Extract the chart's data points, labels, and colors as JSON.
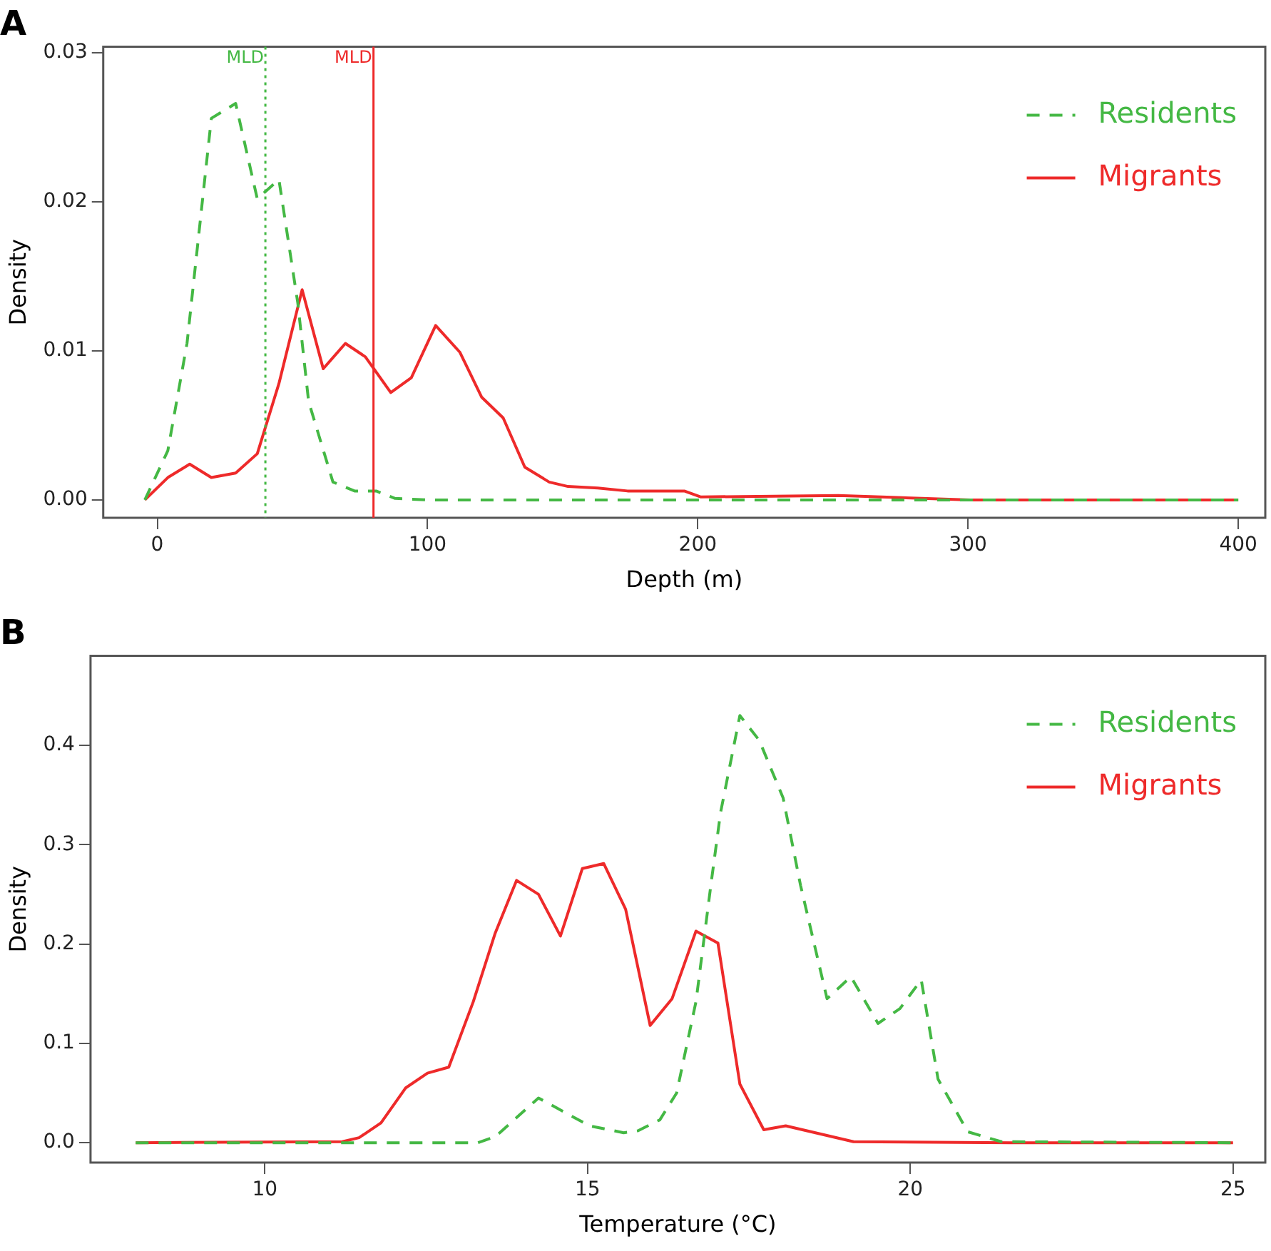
{
  "chart_data": [
    {
      "type": "line",
      "title": "A",
      "xlabel": "Depth (m)",
      "ylabel": "Density",
      "xlim": [
        -20,
        410
      ],
      "ylim": [
        -0.0012,
        0.0304
      ],
      "xticks": [
        0,
        100,
        200,
        300,
        400
      ],
      "yticks": [
        {
          "value": 0,
          "label": "0.00"
        },
        0.01,
        0.02,
        0.03
      ],
      "grid": false,
      "legend": "top right",
      "marker": "none",
      "series": [
        {
          "name": "Residents",
          "color": "#44b844",
          "line_style": "dashed",
          "x": [
            -4.6,
            3.9,
            11,
            20,
            29,
            37,
            45,
            52,
            56,
            65,
            73,
            81,
            88,
            100,
            200,
            300,
            400
          ],
          "values": [
            0,
            0.0033,
            0.0105,
            0.0256,
            0.0266,
            0.0202,
            0.0215,
            0.0132,
            0.0066,
            0.0012,
            0.0006,
            0.0006,
            0.0001,
            0,
            0,
            0,
            0
          ]
        },
        {
          "name": "Migrants",
          "color": "#ee2a2a",
          "line_style": "solid",
          "x": [
            -4.6,
            3.9,
            12,
            20,
            29,
            37,
            45,
            53.6,
            61.4,
            69.6,
            77,
            86.4,
            94,
            103,
            112,
            120,
            128,
            136,
            145,
            152,
            163,
            174,
            195,
            201,
            252,
            268,
            301,
            400
          ],
          "values": [
            0,
            0.0015,
            0.0024,
            0.0015,
            0.0018,
            0.0031,
            0.0078,
            0.0141,
            0.0088,
            0.0105,
            0.0096,
            0.0072,
            0.0082,
            0.0117,
            0.0099,
            0.0069,
            0.0055,
            0.0022,
            0.0012,
            0.0009,
            0.0008,
            0.0006,
            0.0006,
            0.0002,
            0.0003,
            0.0002,
            0,
            0
          ]
        }
      ],
      "ref_lines": [
        {
          "axis": "x",
          "value": 40,
          "label": "MLD",
          "color": "#44b844",
          "line_style": "dotted"
        },
        {
          "axis": "x",
          "value": 80,
          "label": "MLD",
          "color": "#ee2a2a",
          "line_style": "solid"
        }
      ]
    },
    {
      "type": "line",
      "title": "B",
      "xlabel": "Temperature (°C)",
      "ylabel": "Density",
      "xlim": [
        7.3,
        25.5
      ],
      "ylim": [
        -0.02,
        0.49
      ],
      "xticks": [
        10,
        15,
        20,
        25
      ],
      "yticks": [
        {
          "value": 0,
          "label": "0.0"
        },
        0.1,
        0.2,
        0.3,
        0.4
      ],
      "grid": false,
      "legend": "top right",
      "marker": "none",
      "series": [
        {
          "name": "Residents",
          "color": "#44b844",
          "line_style": "dashed",
          "x": [
            8,
            13.3,
            13.57,
            14.24,
            15.03,
            15.56,
            15.78,
            16.12,
            16.38,
            16.68,
            16.91,
            17.06,
            17.36,
            17.66,
            18.03,
            18.3,
            18.71,
            19.08,
            19.5,
            19.84,
            20.17,
            20.43,
            20.89,
            21.41,
            25
          ],
          "values": [
            0,
            0,
            0.006,
            0.045,
            0.017,
            0.01,
            0.012,
            0.023,
            0.05,
            0.142,
            0.259,
            0.332,
            0.43,
            0.405,
            0.347,
            0.259,
            0.145,
            0.167,
            0.12,
            0.135,
            0.164,
            0.064,
            0.011,
            0.001,
            0
          ]
        },
        {
          "name": "Migrants",
          "color": "#ee2a2a",
          "line_style": "solid",
          "x": [
            8,
            11.2,
            11.46,
            11.8,
            12.18,
            12.52,
            12.85,
            13.23,
            13.57,
            13.9,
            14.24,
            14.58,
            14.92,
            15.25,
            15.59,
            15.97,
            16.31,
            16.68,
            17.02,
            17.36,
            17.73,
            18.07,
            19.12,
            21.56,
            25
          ],
          "values": [
            0,
            0.001,
            0.005,
            0.02,
            0.055,
            0.07,
            0.076,
            0.142,
            0.211,
            0.264,
            0.25,
            0.208,
            0.276,
            0.281,
            0.235,
            0.118,
            0.145,
            0.213,
            0.201,
            0.059,
            0.013,
            0.017,
            0.001,
            0,
            0
          ]
        }
      ]
    }
  ]
}
